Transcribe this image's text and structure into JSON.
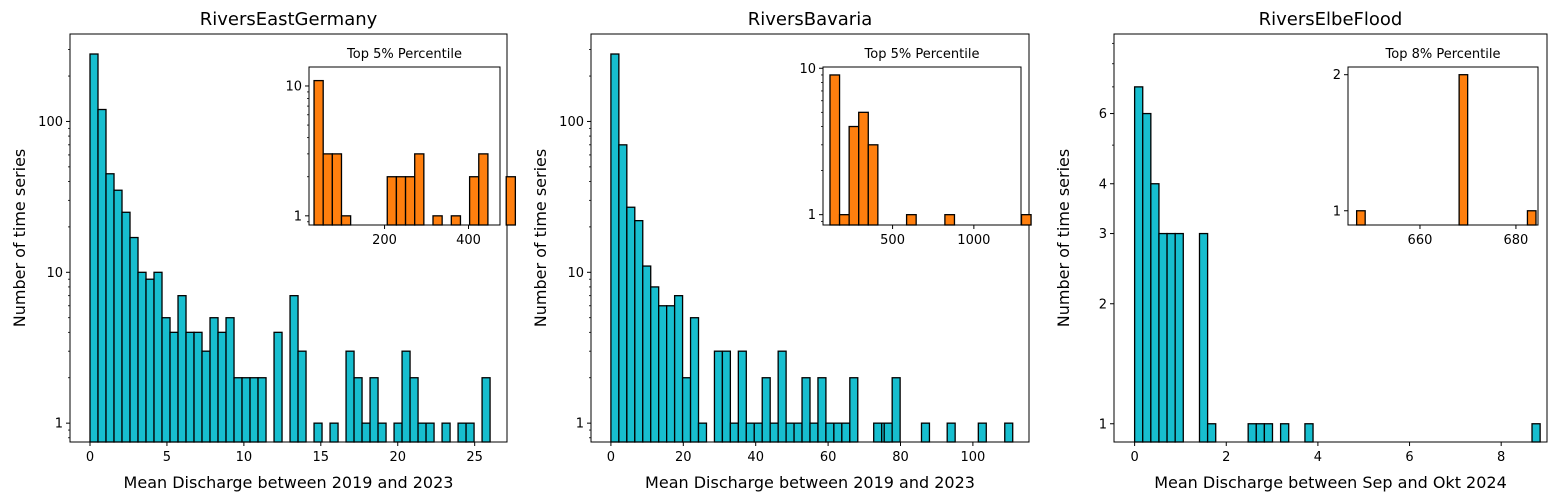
{
  "colors": {
    "main_bar": "#17becf",
    "inset_bar": "#ff7f0e",
    "edge": "#000000"
  },
  "chart_data": [
    {
      "type": "bar",
      "title": "RiversEastGermany",
      "xlabel": "Mean Discharge between 2019 and 2023",
      "ylabel": "Number of time series",
      "yscale": "log",
      "xlim": [
        -1.3,
        27.1
      ],
      "ylim": [
        0.75,
        380
      ],
      "xticks": [
        0,
        5,
        10,
        15,
        20,
        25
      ],
      "yticks": [
        1,
        10,
        100
      ],
      "bin_start": 0.0,
      "bin_width": 0.52,
      "values": [
        280,
        120,
        45,
        35,
        25,
        17,
        10,
        9,
        10,
        5,
        4,
        7,
        4,
        4,
        3,
        5,
        4,
        5,
        2,
        2,
        2,
        2,
        0,
        4,
        0,
        7,
        3,
        0,
        1,
        0,
        1,
        0,
        3,
        2,
        1,
        2,
        1,
        0,
        1,
        3,
        2,
        1,
        1,
        0,
        1,
        0,
        1,
        1,
        0,
        2
      ],
      "inset": {
        "title": "Top 5% Percentile",
        "xlim": [
          20,
          475
        ],
        "ylim": [
          0.85,
          14
        ],
        "xticks": [
          200,
          400
        ],
        "yticks": [
          1,
          10
        ],
        "bin_start": 32,
        "bin_width": 21.8,
        "values": [
          11,
          3,
          3,
          1,
          0,
          0,
          0,
          0,
          2,
          2,
          2,
          3,
          0,
          1,
          0,
          1,
          0,
          2,
          3,
          0,
          0,
          2
        ]
      }
    },
    {
      "type": "bar",
      "title": "RiversBavaria",
      "xlabel": "Mean Discharge between 2019 and 2023",
      "ylabel": "Number of time series",
      "yscale": "log",
      "xlim": [
        -5.5,
        115.5
      ],
      "ylim": [
        0.75,
        380
      ],
      "xticks": [
        0,
        20,
        40,
        60,
        80,
        100
      ],
      "yticks": [
        1,
        10,
        100
      ],
      "bin_start": 0.0,
      "bin_width": 2.2,
      "values": [
        280,
        70,
        27,
        22,
        11,
        8,
        6,
        6,
        7,
        2,
        5,
        1,
        0,
        3,
        3,
        1,
        3,
        1,
        1,
        2,
        1,
        3,
        1,
        1,
        2,
        1,
        2,
        1,
        1,
        1,
        2,
        0,
        0,
        1,
        1,
        0,
        0,
        0,
        0,
        1,
        0,
        0,
        0,
        0,
        0,
        0,
        0,
        0,
        0,
        0
      ],
      "extra_bars": [
        {
          "x": 75.5,
          "value": 1
        },
        {
          "x": 77.7,
          "value": 2
        },
        {
          "x": 92.9,
          "value": 1
        },
        {
          "x": 101.5,
          "value": 1
        },
        {
          "x": 108.8,
          "value": 1
        }
      ],
      "inset": {
        "title": "Top 5% Percentile",
        "xlim": [
          72,
          1290
        ],
        "ylim": [
          0.85,
          10.2
        ],
        "xticks": [
          500,
          1000
        ],
        "yticks": [
          1,
          10
        ],
        "bin_start": 115,
        "bin_width": 58.9,
        "values": [
          9,
          1,
          4,
          5,
          3,
          0,
          0,
          0,
          1,
          0,
          0,
          0,
          1,
          0,
          0,
          0,
          0,
          0,
          0,
          0,
          1
        ]
      }
    },
    {
      "type": "bar",
      "title": "RiversElbeFlood",
      "xlabel": "Mean Discharge between Sep and Okt 2024",
      "ylabel": "Number of time series",
      "yscale": "log",
      "xlim": [
        -0.45,
        9.0
      ],
      "ylim": [
        0.9,
        9.5
      ],
      "xticks": [
        0,
        2,
        4,
        6,
        8
      ],
      "yticks": [
        1,
        2,
        3,
        4,
        6
      ],
      "bin_start": 0.0,
      "bin_width": 0.177,
      "values": [
        7,
        6,
        4,
        3,
        3,
        3,
        0,
        0,
        3,
        1,
        0,
        0,
        0,
        0,
        1,
        1,
        1,
        0,
        1,
        0,
        0,
        1,
        0,
        0,
        0,
        0,
        0,
        0,
        0,
        0,
        0,
        0,
        0,
        0,
        0,
        0,
        0,
        0,
        0,
        0,
        0,
        0,
        0,
        0,
        0,
        0,
        0,
        0,
        0,
        1
      ],
      "inset": {
        "title": "Top 8% Percentile",
        "xlim": [
          645,
          684.6
        ],
        "ylim": [
          0.93,
          2.08
        ],
        "xticks": [
          660,
          680
        ],
        "yticks": [
          1,
          2
        ],
        "bin_start": 646.8,
        "bin_width": 1.78,
        "values": [
          1,
          0,
          0,
          0,
          0,
          0,
          0,
          0,
          0,
          0,
          0,
          0,
          2,
          0,
          0,
          0,
          0,
          0,
          0,
          0,
          1
        ]
      }
    }
  ]
}
